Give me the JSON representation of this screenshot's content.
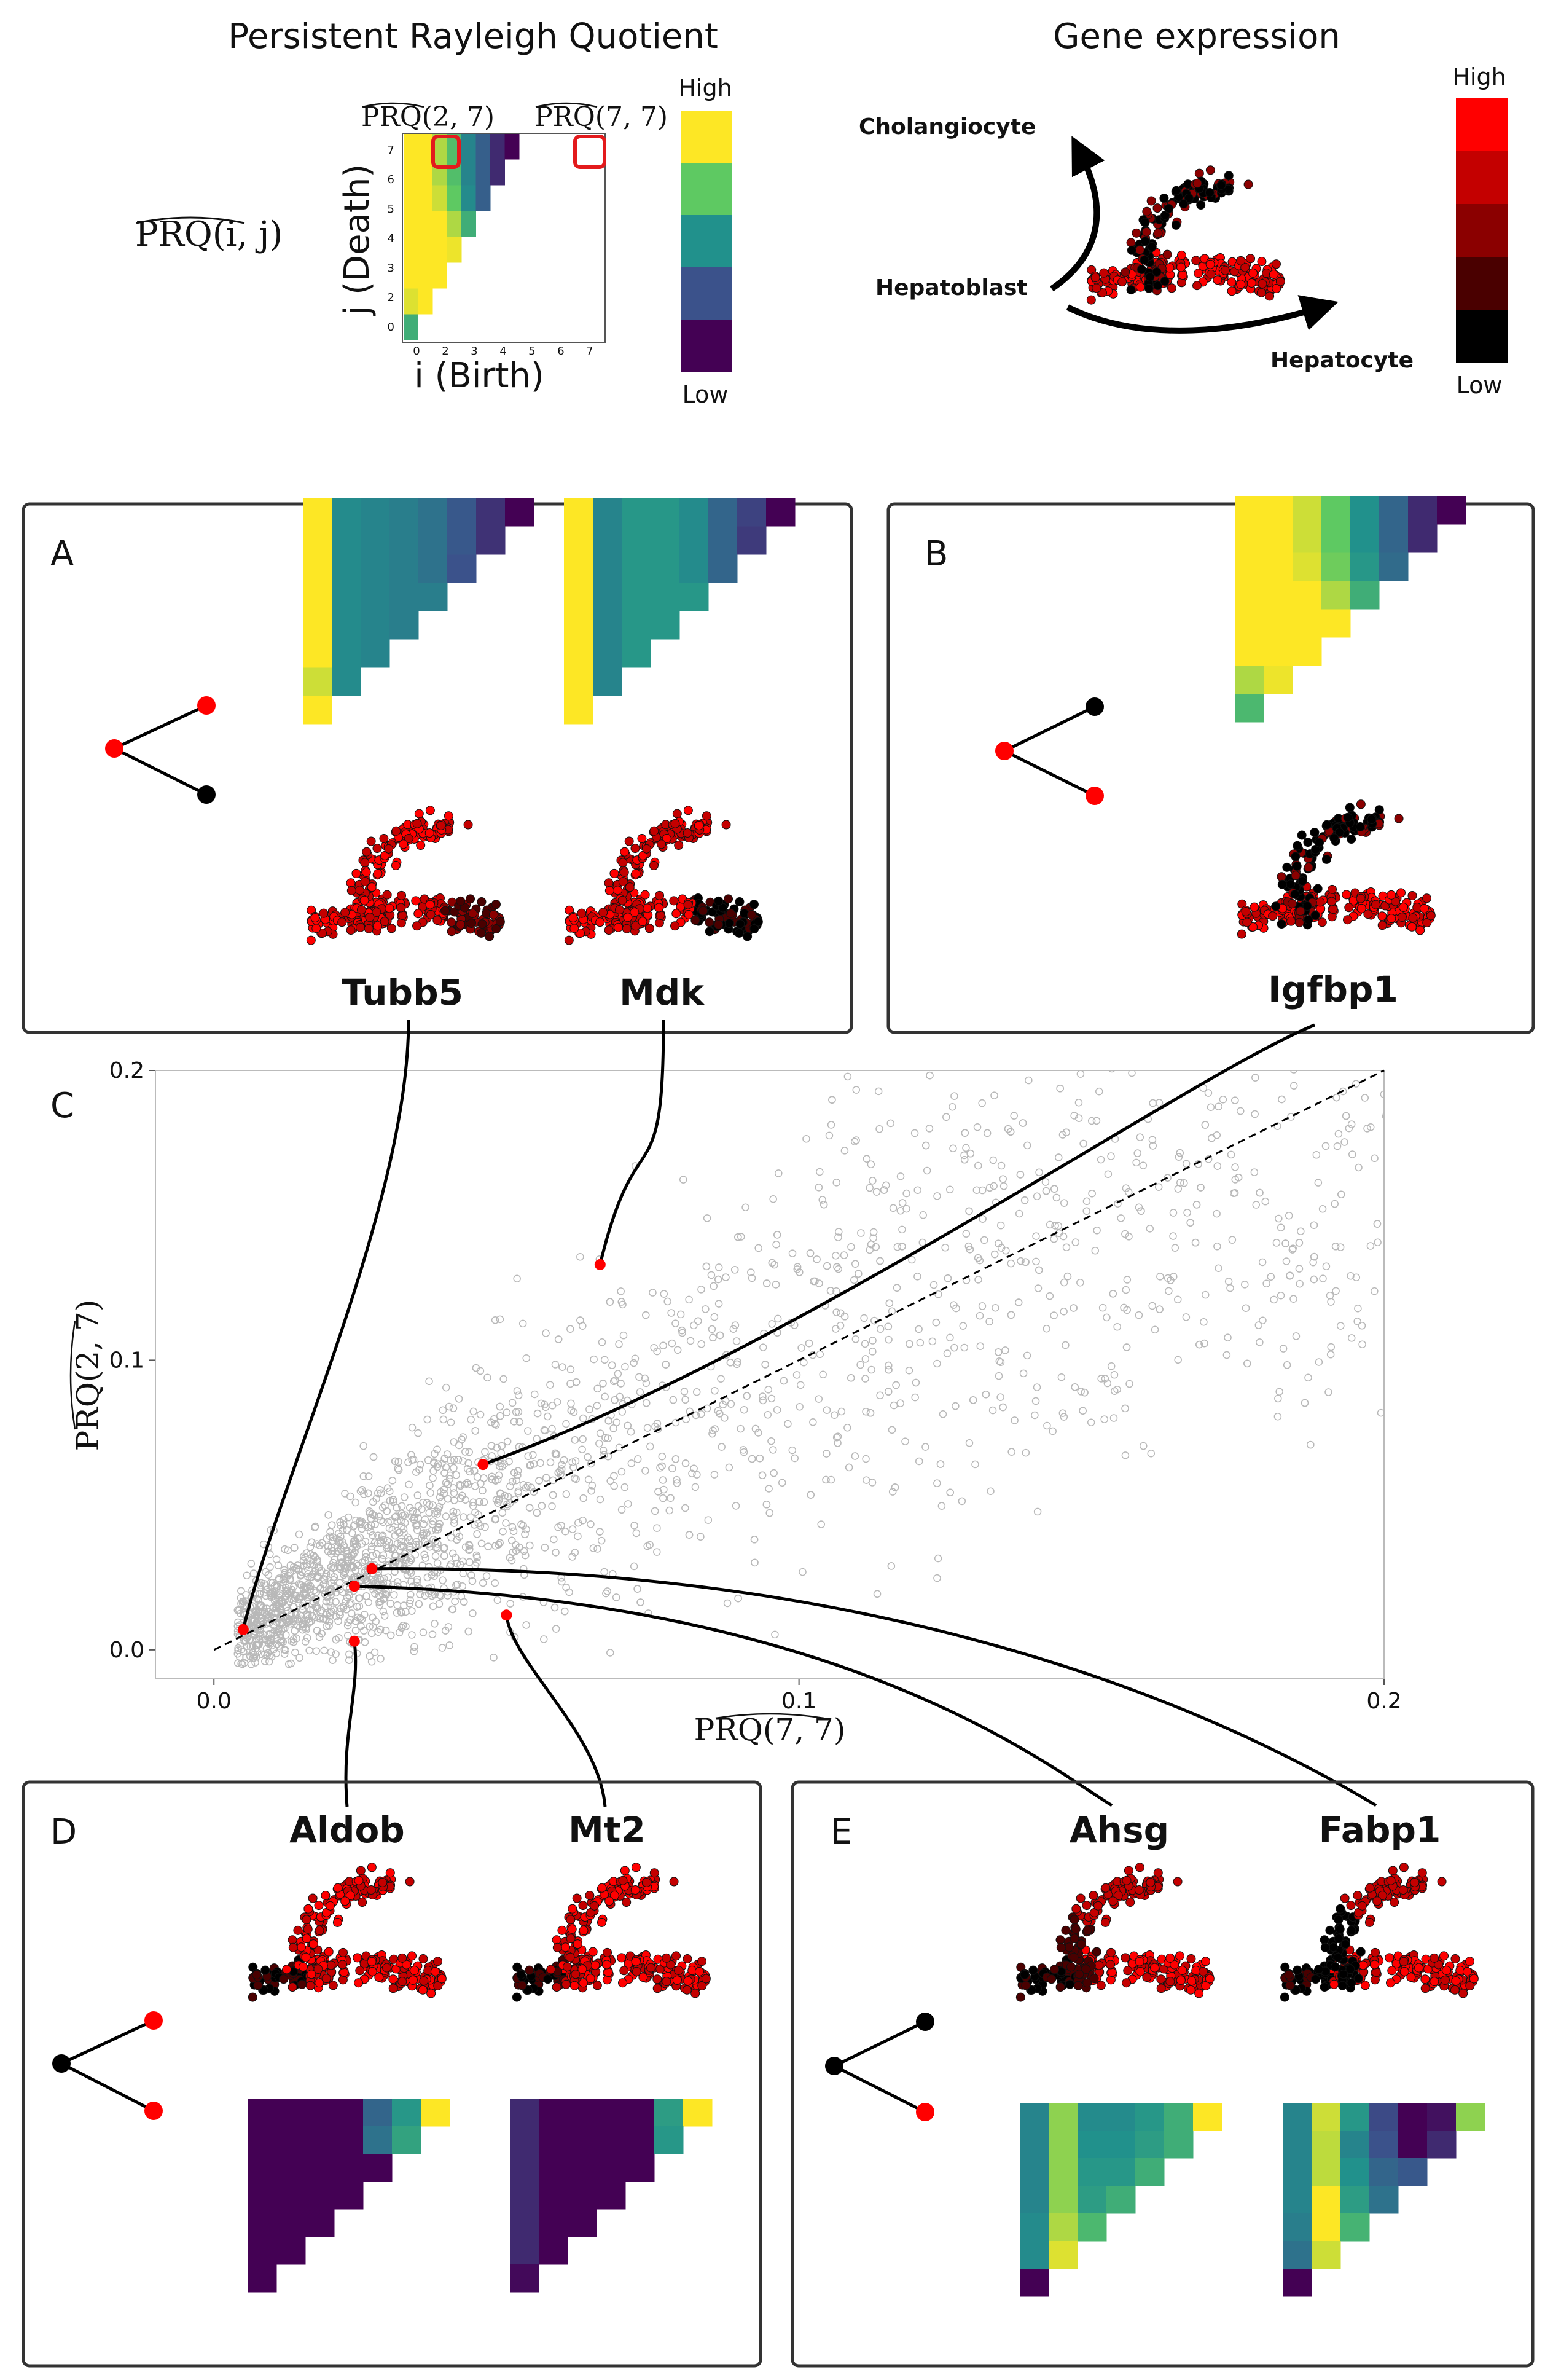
{
  "header": {
    "left_title": "Persistent Rayleigh Quotient",
    "right_title": "Gene expression",
    "prq_label": "PRQ(i, j)",
    "hat_label_a": "PRQ(2, 7)",
    "hat_label_b": "PRQ(7, 7)",
    "y_axis_label": "j (Death)",
    "x_axis_label": "i (Birth)",
    "ticks": [
      "0",
      "1",
      "2",
      "3",
      "4",
      "5",
      "6",
      "7"
    ],
    "colorbar_high": "High",
    "colorbar_low": "Low",
    "expr_high": "High",
    "expr_low": "Low",
    "cell_types": {
      "cholangiocyte": "Cholangiocyte",
      "hepatoblast": "Hepatoblast",
      "hepatocyte": "Hepatocyte"
    }
  },
  "colors": {
    "viridis": [
      "#440154",
      "#3b528b",
      "#21918c",
      "#5ec962",
      "#fde725"
    ],
    "expression": [
      "#000000",
      "#4a0000",
      "#8b0000",
      "#c40000",
      "#ff0000"
    ],
    "highlight": "#e31a1c",
    "scatter_point": "#b8b8b8"
  },
  "panels": {
    "A": {
      "letter": "A",
      "genes": [
        "Tubb5",
        "Mdk"
      ]
    },
    "B": {
      "letter": "B",
      "genes": [
        "Igfbp1"
      ]
    },
    "C": {
      "letter": "C"
    },
    "D": {
      "letter": "D",
      "genes": [
        "Aldob",
        "Mt2"
      ]
    },
    "E": {
      "letter": "E",
      "genes": [
        "Ahsg",
        "Fabp1"
      ]
    }
  },
  "chart_data": {
    "type": "scatter",
    "title": "",
    "xlabel": "PRQ(7, 7)",
    "ylabel": "PRQ(2, 7)",
    "xlim": [
      -0.01,
      0.2
    ],
    "ylim": [
      -0.01,
      0.2
    ],
    "xticks": [
      "0.0",
      "0.1",
      "0.2"
    ],
    "yticks": [
      "0.0",
      "0.1",
      "0.2"
    ],
    "reference_line": "y = x",
    "background_points": "about 3000 genes, grey open circles",
    "highlighted": [
      {
        "gene": "Tubb5",
        "x": 0.005,
        "y": 0.007
      },
      {
        "gene": "Mdk",
        "x": 0.066,
        "y": 0.133
      },
      {
        "gene": "Igfbp1",
        "x": 0.046,
        "y": 0.064
      },
      {
        "gene": "Aldob",
        "x": 0.024,
        "y": 0.003
      },
      {
        "gene": "Mt2",
        "x": 0.05,
        "y": 0.012
      },
      {
        "gene": "Ahsg",
        "x": 0.024,
        "y": 0.022
      },
      {
        "gene": "Fabp1",
        "x": 0.027,
        "y": 0.028
      }
    ]
  },
  "heatmaps": {
    "main": [
      [
        3.0
      ],
      [
        4.3,
        4.5
      ],
      [
        4.9,
        4.5,
        4.6
      ],
      [
        4.8,
        4.6,
        4.7,
        4.4
      ],
      [
        4.8,
        4.6,
        4.5,
        4.0,
        3.0
      ],
      [
        4.8,
        4.5,
        4.2,
        3.5,
        2.4,
        1.7
      ],
      [
        4.8,
        4.5,
        4.0,
        3.3,
        2.3,
        1.7,
        1.0
      ],
      [
        4.8,
        4.5,
        4.0,
        3.3,
        2.3,
        1.7,
        1.0,
        0.2
      ]
    ],
    "Tubb5": [
      [
        4.8
      ],
      [
        4.2,
        2.4
      ],
      [
        4.6,
        2.4,
        2.3
      ],
      [
        4.7,
        2.4,
        2.3,
        2.2
      ],
      [
        4.7,
        2.4,
        2.3,
        2.2,
        2.2
      ],
      [
        4.8,
        2.4,
        2.3,
        2.2,
        2.0,
        1.5
      ],
      [
        4.8,
        2.4,
        2.3,
        2.2,
        2.0,
        1.6,
        1.1
      ],
      [
        4.8,
        2.4,
        2.3,
        2.2,
        2.0,
        1.6,
        1.1,
        0.2
      ]
    ],
    "Mdk": [
      [
        4.8
      ],
      [
        4.5,
        2.3
      ],
      [
        4.6,
        2.3,
        2.6
      ],
      [
        4.7,
        2.3,
        2.6,
        2.6
      ],
      [
        4.8,
        2.3,
        2.6,
        2.6,
        2.6
      ],
      [
        4.8,
        2.3,
        2.6,
        2.6,
        2.4,
        1.8
      ],
      [
        4.8,
        2.3,
        2.6,
        2.6,
        2.4,
        1.8,
        1.2
      ],
      [
        4.8,
        2.3,
        2.6,
        2.6,
        2.4,
        1.8,
        1.3,
        0.3
      ]
    ],
    "Igfbp1": [
      [
        3.2
      ],
      [
        4.0,
        4.4
      ],
      [
        4.5,
        4.6,
        4.7
      ],
      [
        4.8,
        4.6,
        4.6,
        4.5
      ],
      [
        4.8,
        4.6,
        4.5,
        4.0,
        3.0
      ],
      [
        4.9,
        4.7,
        4.3,
        3.6,
        2.6,
        1.9
      ],
      [
        4.9,
        4.7,
        4.2,
        3.5,
        2.5,
        1.8,
        1.0
      ],
      [
        4.9,
        4.7,
        4.2,
        3.5,
        2.5,
        1.8,
        1.0,
        0.3
      ]
    ],
    "Aldob": [
      [
        0.2,
        0.2,
        0.2,
        0.2,
        1.8,
        2.6,
        4.9
      ],
      [
        0.2,
        0.2,
        0.2,
        0.2,
        2.0,
        2.8
      ],
      [
        0.2,
        0.2,
        0.2,
        0.2,
        0.3
      ],
      [
        0.2,
        0.2,
        0.2,
        0.2
      ],
      [
        0.2,
        0.2,
        0.2
      ],
      [
        0.2,
        0.2
      ],
      [
        0.2
      ]
    ],
    "Mt2": [
      [
        1.0,
        0.2,
        0.1,
        0.1,
        0.2,
        2.7,
        4.9
      ],
      [
        1.0,
        0.2,
        0.1,
        0.1,
        0.2,
        2.6
      ],
      [
        1.0,
        0.2,
        0.1,
        0.1,
        0.2
      ],
      [
        1.0,
        0.2,
        0.1,
        0.1
      ],
      [
        1.0,
        0.2,
        0.1
      ],
      [
        1.0,
        0.2
      ],
      [
        0.6
      ]
    ],
    "Ahsg": [
      [
        2.3,
        3.8,
        2.4,
        2.4,
        2.6,
        3.0,
        4.9
      ],
      [
        2.3,
        3.8,
        2.5,
        2.5,
        2.7,
        3.0
      ],
      [
        2.3,
        3.8,
        2.6,
        2.6,
        3.0
      ],
      [
        2.3,
        3.8,
        2.7,
        3.0
      ],
      [
        2.4,
        4.0,
        3.2
      ],
      [
        2.4,
        4.3
      ],
      [
        0.2
      ]
    ],
    "Fabp1": [
      [
        2.3,
        4.2,
        2.6,
        1.4,
        0.3,
        0.7,
        3.8
      ],
      [
        2.3,
        4.1,
        2.3,
        1.5,
        0.3,
        1.0
      ],
      [
        2.3,
        4.1,
        2.5,
        1.8,
        1.6
      ],
      [
        2.3,
        4.7,
        2.7,
        2.0
      ],
      [
        2.2,
        4.6,
        3.1
      ],
      [
        2.0,
        4.2
      ],
      [
        0.3
      ]
    ]
  }
}
